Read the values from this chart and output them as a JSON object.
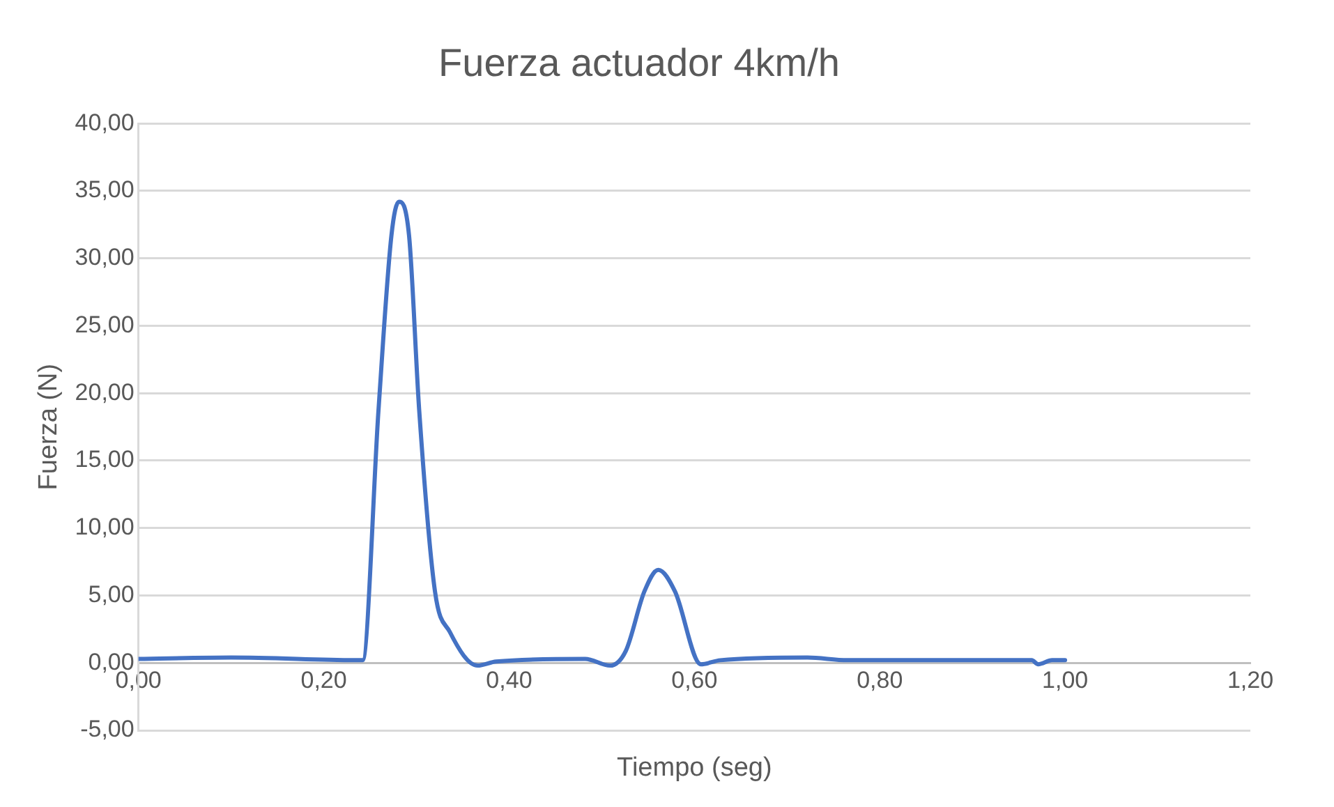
{
  "chart_data": {
    "type": "line",
    "title": "Fuerza actuador 4km/h",
    "xlabel": "Tiempo (seg)",
    "ylabel": "Fuerza (N)",
    "x": [
      0,
      0.1,
      0.242,
      0.259,
      0.273,
      0.281,
      0.292,
      0.303,
      0.32,
      0.336,
      0.366,
      0.386,
      0.482,
      0.509,
      0.526,
      0.546,
      0.561,
      0.579,
      0.607,
      0.628,
      0.722,
      0.765,
      0.964,
      0.971,
      0.986,
      1.0
    ],
    "series": [
      {
        "color": "#4472c4",
        "values": [
          0.3,
          0.4,
          0.2,
          18.7,
          31.7,
          34.2,
          31.7,
          18.7,
          5.3,
          2.3,
          -0.2,
          0.1,
          0.3,
          -0.2,
          0.9,
          5.3,
          6.9,
          5.3,
          -0.1,
          0.2,
          0.4,
          0.2,
          0.2,
          -0.1,
          0.2,
          0.2
        ]
      }
    ],
    "xlim": [
      0,
      1.2
    ],
    "xticks": [
      {
        "value": 0,
        "label": "0,00"
      },
      {
        "value": 0.2,
        "label": "0,20"
      },
      {
        "value": 0.4,
        "label": "0,40"
      },
      {
        "value": 0.6,
        "label": "0,60"
      },
      {
        "value": 0.8,
        "label": "0,80"
      },
      {
        "value": 1.0,
        "label": "1,00"
      },
      {
        "value": 1.2,
        "label": "1,20"
      }
    ],
    "ylim": [
      -5,
      40
    ],
    "yticks": [
      {
        "value": -5,
        "label": "-5,00"
      },
      {
        "value": 0,
        "label": "0,00"
      },
      {
        "value": 5,
        "label": "5,00"
      },
      {
        "value": 10,
        "label": "10,00"
      },
      {
        "value": 15,
        "label": "15,00"
      },
      {
        "value": 20,
        "label": "20,00"
      },
      {
        "value": 25,
        "label": "25,00"
      },
      {
        "value": 30,
        "label": "30,00"
      },
      {
        "value": 35,
        "label": "35,00"
      },
      {
        "value": 40,
        "label": "40,00"
      }
    ],
    "grid": "y",
    "legend": false,
    "marker": "none",
    "line_style": "solid"
  }
}
